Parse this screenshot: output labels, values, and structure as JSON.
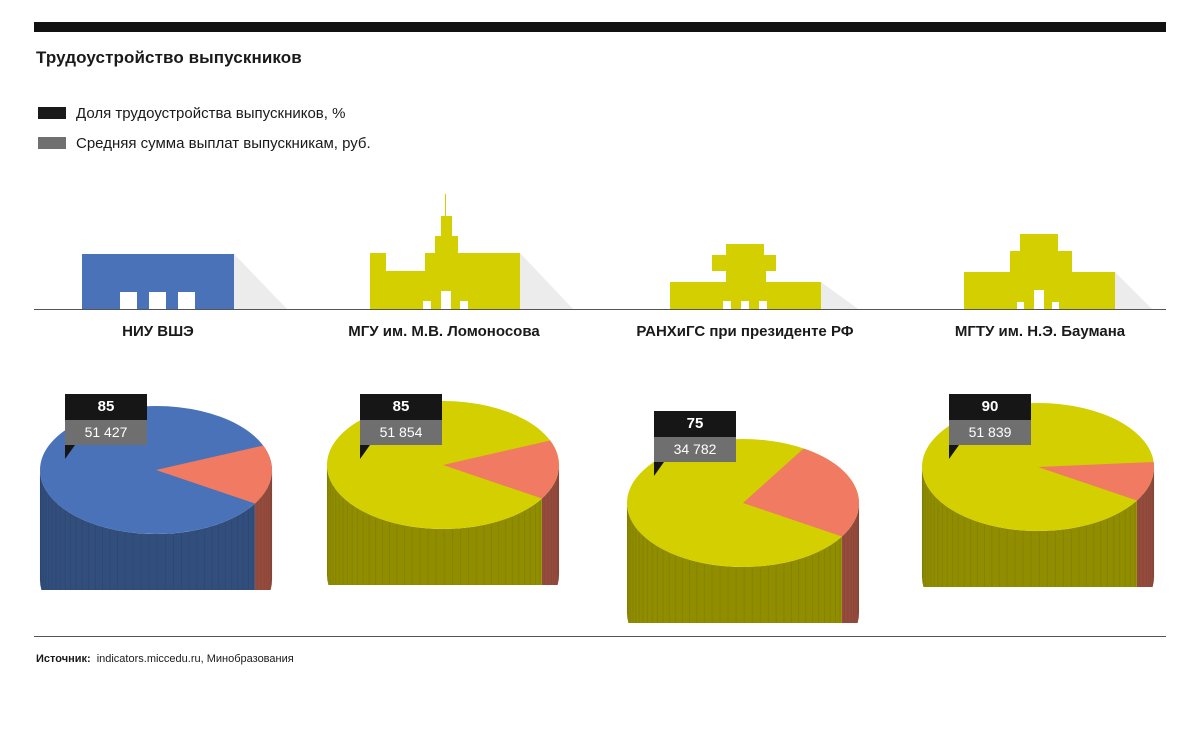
{
  "title": "Трудоустройство выпускников",
  "legend": [
    {
      "label": "Доля трудоустройства выпускников, %",
      "color": "#1a1a1a"
    },
    {
      "label": "Средняя сумма выплат выпускникам, руб.",
      "color": "#707070"
    }
  ],
  "colors": {
    "hse": "#4a72b8",
    "yellow": "#d4cf00",
    "slice": "#f07a62",
    "shadow": "#ececec"
  },
  "chart_data": {
    "type": "pie",
    "title": "Трудоустройство выпускников",
    "categories": [
      "НИУ ВШЭ",
      "МГУ им. М.В. Ломоносова",
      "РАНХиГС при президенте РФ",
      "МГТУ им. Н.Э. Баумана"
    ],
    "series": [
      {
        "name": "Доля трудоустройства выпускников, %",
        "values": [
          85,
          85,
          75,
          90
        ]
      },
      {
        "name": "Средняя сумма выплат выпускникам, руб.",
        "values": [
          51427,
          51854,
          34782,
          51839
        ]
      }
    ],
    "display": {
      "employment": [
        "85",
        "85",
        "75",
        "90"
      ],
      "salary": [
        "51 427",
        "51 854",
        "34 782",
        "51 839"
      ]
    }
  },
  "footer": {
    "source_label": "Источник:",
    "source_text": "indicators.miccedu.ru, Минобразования"
  }
}
